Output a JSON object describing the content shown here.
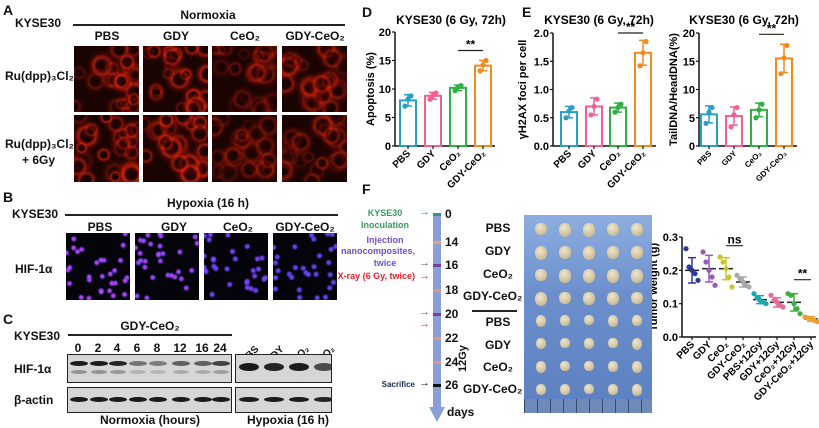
{
  "panels": {
    "a": "A",
    "b": "B",
    "c": "C",
    "d": "D",
    "e": "E",
    "f": "F"
  },
  "cell_line": "KYSE30",
  "groups": [
    "PBS",
    "GDY",
    "CeO₂",
    "GDY-CeO₂"
  ],
  "panel_a": {
    "condition": "Normoxia",
    "rows": [
      "Ru(dpp)₃Cl₂",
      "Ru(dpp)₃Cl₂",
      "+ 6Gy"
    ],
    "stain_color": "#e02a10"
  },
  "panel_b": {
    "condition": "Hypoxia (16 h)",
    "row": "HIF-1α",
    "nuclear_color": "#5a48ff",
    "hif_color": "#d040c0"
  },
  "panel_c": {
    "treatment": "GDY-CeO₂",
    "timepoints": [
      "0",
      "2",
      "4",
      "6",
      "8",
      "12",
      "16",
      "24"
    ],
    "hypoxia_groups": [
      "PBS",
      "GDY",
      "CeO₂",
      "GDY-CeO₂"
    ],
    "rows": [
      "HIF-1α",
      "β-actin"
    ],
    "footer_left": "Normoxia (hours)",
    "footer_right": "Hypoxia (16 h)",
    "hif_band_intensity_normoxia": [
      0.95,
      0.95,
      0.9,
      0.5,
      0.45,
      0.6,
      0.6,
      0.75
    ],
    "hif_band_intensity_hypoxia": [
      0.95,
      0.9,
      0.95,
      0.7
    ],
    "actin_band_intensity": [
      0.95,
      0.95,
      0.95,
      0.95,
      0.95,
      0.95,
      0.95,
      0.95,
      0.95,
      0.95,
      0.95,
      0.9
    ]
  },
  "panel_f": {
    "timeline": [
      {
        "day": "0",
        "color": "#2a9a70",
        "arrow": true
      },
      {
        "day": "14",
        "color": "#f0a070",
        "arrow": false
      },
      {
        "day": "16",
        "color": "#7a3aa0",
        "arrow": true
      },
      {
        "day": "",
        "color": "#e8202a",
        "arrow": true
      },
      {
        "day": "18",
        "color": "#f09080",
        "arrow": false
      },
      {
        "day": "20",
        "color": "#7a3aa0",
        "arrow": true
      },
      {
        "day": "",
        "color": "#e8202a",
        "arrow": true
      },
      {
        "day": "22",
        "color": "#f09080",
        "arrow": false
      },
      {
        "day": "24",
        "color": "#f09080",
        "arrow": false
      },
      {
        "day": "26",
        "color": "#111111",
        "arrow": true
      }
    ],
    "axis_unit": "days",
    "events": {
      "inoculation": [
        "KYSE30",
        "Inoculation"
      ],
      "injection": [
        "Injection",
        "nanocomposites,",
        "twice"
      ],
      "xray": "X-ray (6 Gy, twice)",
      "sacrifice": "Sacrifice"
    },
    "event_colors": {
      "inoculation": "#3a9a60",
      "injection": "#7050c0",
      "xray": "#e8202a",
      "sacrifice": "#1a2a50"
    },
    "photo_groups": [
      "PBS",
      "GDY",
      "CeO₂",
      "GDY-CeO₂",
      "PBS",
      "GDY",
      "CeO₂",
      "GDY-CeO₂"
    ],
    "irradiation_label": "12Gy",
    "tumors_per_group": 5
  },
  "chart_data": [
    {
      "id": "apoptosis",
      "type": "bar",
      "title": "KYSE30 (6 Gy, 72h)",
      "ylabel": "Apoptosis (%)",
      "categories": [
        "PBS",
        "GDY",
        "CeO₂",
        "GDY-CeO₂"
      ],
      "ylim": [
        0,
        20
      ],
      "yticks": [
        "0",
        "5",
        "10",
        "15",
        "20"
      ],
      "values": [
        8.0,
        8.8,
        10.2,
        14.1
      ],
      "errors": [
        1.0,
        0.6,
        0.5,
        0.9
      ],
      "points": [
        [
          7.0,
          8.2,
          8.8
        ],
        [
          8.2,
          8.9,
          9.3
        ],
        [
          9.7,
          10.3,
          10.6
        ],
        [
          13.2,
          14.2,
          15.0
        ]
      ],
      "colors": [
        "#2aa0c0",
        "#f06090",
        "#30b040",
        "#f08a20"
      ],
      "significance": [
        {
          "label": "**",
          "between": [
            2,
            3
          ]
        }
      ]
    },
    {
      "id": "gh2ax",
      "type": "bar",
      "title": "KYSE30 (6 Gy, 72h)",
      "ylabel": "γH2AX foci per cell",
      "categories": [
        "PBS",
        "GDY",
        "CeO₂",
        "GDY-CeO₂"
      ],
      "ylim": [
        0,
        2.0
      ],
      "yticks": [
        "0.0",
        "0.5",
        "1.0",
        "1.5",
        "2.0"
      ],
      "values": [
        0.6,
        0.7,
        0.68,
        1.65
      ],
      "errors": [
        0.1,
        0.15,
        0.08,
        0.22
      ],
      "points": [
        [
          0.5,
          0.62,
          0.68
        ],
        [
          0.55,
          0.7,
          0.83
        ],
        [
          0.6,
          0.68,
          0.74
        ],
        [
          1.42,
          1.65,
          1.85
        ]
      ],
      "colors": [
        "#2aa0c0",
        "#f06090",
        "#30b040",
        "#f08a20"
      ],
      "significance": [
        {
          "label": "**",
          "between": [
            2,
            3
          ]
        }
      ]
    },
    {
      "id": "comet",
      "type": "bar",
      "title": "KYSE30 (6 Gy, 72h)",
      "ylabel": "TailDNA/HeadDNA(%)",
      "categories": [
        "PBS",
        "GDY",
        "CeO₂",
        "GDY-CeO₂"
      ],
      "ylim": [
        0,
        20
      ],
      "yticks": [
        "0",
        "5",
        "10",
        "15",
        "20"
      ],
      "values": [
        5.6,
        5.3,
        6.4,
        15.5
      ],
      "errors": [
        1.5,
        1.6,
        1.2,
        2.5
      ],
      "points": [
        [
          4.0,
          6.0,
          6.8
        ],
        [
          3.4,
          5.5,
          6.8
        ],
        [
          5.0,
          6.4,
          7.4
        ],
        [
          12.8,
          15.6,
          17.8
        ]
      ],
      "colors": [
        "#2aa0c0",
        "#f06090",
        "#30b040",
        "#f08a20"
      ],
      "significance": [
        {
          "label": "**",
          "between": [
            2,
            3
          ]
        }
      ]
    },
    {
      "id": "tumor_weight",
      "type": "scatter",
      "ylabel": "Tumor weight (g)",
      "categories": [
        "PBS",
        "GDY",
        "CeO₂",
        "GDY-CeO₂",
        "PBS+12Gy",
        "GDY+12Gy",
        "CeO₂+12Gy",
        "GDY-CeO₂+12Gy"
      ],
      "ylim": [
        0,
        0.3
      ],
      "yticks": [
        "0.0",
        "0.1",
        "0.2",
        "0.3"
      ],
      "values": [
        0.2,
        0.205,
        0.205,
        0.165,
        0.112,
        0.104,
        0.104,
        0.054
      ],
      "errors": [
        0.038,
        0.04,
        0.033,
        0.015,
        0.012,
        0.014,
        0.026,
        0.007
      ],
      "points": [
        [
          0.265,
          0.21,
          0.2,
          0.19,
          0.17
        ],
        [
          0.255,
          0.225,
          0.2,
          0.18,
          0.155
        ],
        [
          0.24,
          0.225,
          0.205,
          0.18,
          0.15
        ],
        [
          0.185,
          0.175,
          0.165,
          0.155,
          0.15
        ],
        [
          0.13,
          0.118,
          0.11,
          0.105,
          0.1
        ],
        [
          0.125,
          0.11,
          0.104,
          0.095,
          0.09
        ],
        [
          0.13,
          0.125,
          0.1,
          0.085,
          0.07
        ],
        [
          0.06,
          0.057,
          0.054,
          0.05,
          0.046
        ]
      ],
      "colors": [
        "#2a3a9a",
        "#9b59b6",
        "#c8c82a",
        "#a8a8a8",
        "#1aa8b0",
        "#e86a9a",
        "#3cb043",
        "#f0a030"
      ],
      "significance": [
        {
          "label": "ns",
          "between": [
            2,
            3
          ]
        },
        {
          "label": "**",
          "between": [
            6,
            7
          ]
        }
      ]
    }
  ]
}
